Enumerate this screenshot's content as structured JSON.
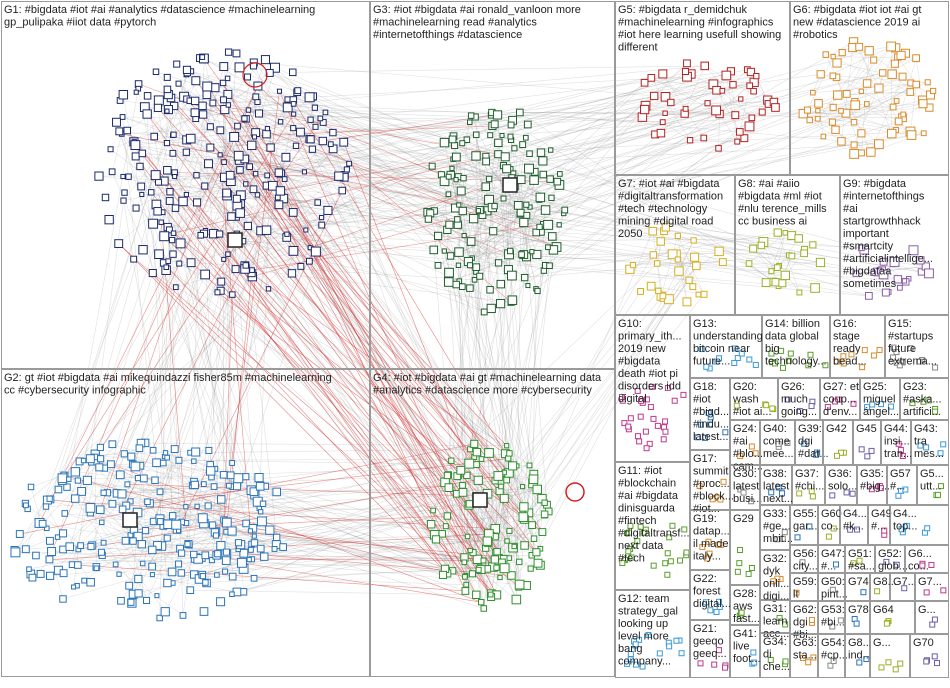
{
  "groups": [
    {
      "label_lines": [
        "G1: #bigdata #iot #ai #analytics #datascience #machinelearning",
        "gp_pulipaka #iiot data #pytorch"
      ]
    },
    {
      "label_lines": [
        "G2: gt #iot #bigdata #ai mikequindazzi fisher85m #machinelearning",
        "cc #cybersecurity infographic"
      ]
    },
    {
      "label_lines": [
        "G3: #iot #bigdata #ai ronald_vanloon more",
        "#machinelearning read #analytics",
        "#internetofthings #datascience"
      ]
    },
    {
      "label_lines": [
        "G4: #iot #bigdata #ai gt #machinelearning data",
        "#analytics #datascience more #cybersecurity"
      ]
    },
    {
      "label_lines": [
        "G5: #bigdata r_demidchuk",
        "#machinelearning #infographics",
        "#iot here learning usefull showing",
        "different"
      ]
    },
    {
      "label_lines": [
        "G6: #bigdata #iot iot #ai gt",
        "new #datascience 2019 ai",
        "#robotics"
      ]
    },
    {
      "label_lines": [
        "G7: #iot #ai #bigdata",
        "#digitaltransformation",
        "#tech #technology",
        "mining #digital road",
        "2050"
      ]
    },
    {
      "label_lines": [
        "G8: #ai #aiio",
        "#bigdata #ml #iot",
        "#nlu terence_mills",
        "cc business ai"
      ]
    },
    {
      "label_lines": [
        "G9: #bigdata",
        "#internetofthings",
        "#ai",
        "startgrowthhack",
        "important",
        "#smartcity",
        "#artificialintellige...",
        "#bigdataa",
        "sometimes"
      ]
    },
    {
      "label_lines": [
        "G10:",
        "primary_ith...",
        "2019 new",
        "#bigdata",
        "death #iot pi",
        "disorders idd",
        "digital"
      ]
    },
    {
      "label_lines": [
        "G13:",
        "understanding",
        "bitcoin near",
        "future..."
      ]
    },
    {
      "label_lines": [
        "G14: billion",
        "data global",
        "big",
        "technology..."
      ]
    },
    {
      "label_lines": [
        "G16:",
        "stage",
        "ready",
        "bead..."
      ]
    },
    {
      "label_lines": [
        "G15:",
        "#startups",
        "future",
        "extrema..."
      ]
    },
    {
      "label_lines": [
        "G18:",
        "#iot",
        "#bigd...",
        "#indu...",
        "latest..."
      ]
    },
    {
      "label_lines": [
        "G20:",
        "wash",
        "#iot ai..."
      ]
    },
    {
      "label_lines": [
        "G26:",
        "much",
        "going..."
      ]
    },
    {
      "label_lines": [
        "G27: et",
        "coup...",
        "d'env..."
      ]
    },
    {
      "label_lines": [
        "G25:",
        "miguel",
        "ángel..."
      ]
    },
    {
      "label_lines": [
        "G23:",
        "#aska...",
        "artifici..."
      ]
    },
    {
      "label_lines": [
        "G24:",
        "#ai",
        "#blo...",
        "cam..."
      ]
    },
    {
      "label_lines": [
        "G40:",
        "come",
        "mee..."
      ]
    },
    {
      "label_lines": [
        "G39:",
        "dgi",
        "#dat..."
      ]
    },
    {
      "label_lines": [
        "G42"
      ]
    },
    {
      "label_lines": [
        "G45"
      ]
    },
    {
      "label_lines": [
        "G44:",
        "insi...",
        "tran..."
      ]
    },
    {
      "label_lines": [
        "G43:",
        "tra",
        "mes..."
      ]
    },
    {
      "label_lines": [
        "G11: #iot",
        "#blockchain",
        "#ai #bigdata",
        "dinisguarda",
        "#fintech",
        "#digitaltransf...",
        "next data",
        "#tech"
      ]
    },
    {
      "label_lines": [
        "G17:",
        "summit",
        "#proc...",
        "#block...",
        "#iot..."
      ]
    },
    {
      "label_lines": [
        "G30:",
        "latest",
        "busi..."
      ]
    },
    {
      "label_lines": [
        "G38:",
        "latest",
        "next..."
      ]
    },
    {
      "label_lines": [
        "G37:",
        "#chi..."
      ]
    },
    {
      "label_lines": [
        "G36:",
        "solo..."
      ]
    },
    {
      "label_lines": [
        "G35:",
        "#big..."
      ]
    },
    {
      "label_lines": [
        "G57",
        "#..."
      ]
    },
    {
      "label_lines": [
        "G5...",
        "utt..."
      ]
    },
    {
      "label_lines": [
        "G19:",
        "datap...",
        "il made",
        "italy..."
      ]
    },
    {
      "label_lines": [
        "G33:",
        "#ge...",
        "mbit..."
      ]
    },
    {
      "label_lines": [
        "G55:",
        "gar..."
      ]
    },
    {
      "label_lines": [
        "G60",
        "co..."
      ]
    },
    {
      "label_lines": [
        "G4...",
        "#k..."
      ]
    },
    {
      "label_lines": [
        "G49",
        "#..."
      ]
    },
    {
      "label_lines": [
        "G4...",
        "top..."
      ]
    },
    {
      "label_lines": [
        "G29"
      ]
    },
    {
      "label_lines": [
        "G32:",
        "dyk",
        "onli...",
        "digi..."
      ]
    },
    {
      "label_lines": [
        "G56:",
        "city..."
      ]
    },
    {
      "label_lines": [
        "G47:",
        "#..."
      ]
    },
    {
      "label_lines": [
        "G51:",
        "#sa..."
      ]
    },
    {
      "label_lines": [
        "G52:",
        "glob..."
      ]
    },
    {
      "label_lines": [
        "G6...",
        "co..."
      ]
    },
    {
      "label_lines": [
        "G22:",
        "forest",
        "digital..."
      ]
    },
    {
      "label_lines": [
        "G28:",
        "aws",
        "fast..."
      ]
    },
    {
      "label_lines": [
        "G59:",
        "lt"
      ]
    },
    {
      "label_lines": [
        "G50:",
        "pint..."
      ]
    },
    {
      "label_lines": [
        "G74"
      ]
    },
    {
      "label_lines": [
        "G8..."
      ]
    },
    {
      "label_lines": [
        "G7..."
      ]
    },
    {
      "label_lines": [
        "G7..."
      ]
    },
    {
      "label_lines": [
        "G12: team",
        "strategy_gal",
        "looking up",
        "level more",
        "bang",
        "company..."
      ]
    },
    {
      "label_lines": [
        "G31:",
        "learn",
        "acc..."
      ]
    },
    {
      "label_lines": [
        "G62:",
        "dgi",
        "#bi..."
      ]
    },
    {
      "label_lines": [
        "G53:",
        "#bi..."
      ]
    },
    {
      "label_lines": [
        "G78"
      ]
    },
    {
      "label_lines": [
        "G64"
      ]
    },
    {
      "label_lines": [
        "G..."
      ]
    },
    {
      "label_lines": [
        "G21:",
        "geeqo",
        "geeq..."
      ]
    },
    {
      "label_lines": [
        "G41:",
        "live",
        "foot..."
      ]
    },
    {
      "label_lines": [
        "G34:",
        "di",
        "che..."
      ]
    },
    {
      "label_lines": [
        "G63:",
        "sta..."
      ]
    },
    {
      "label_lines": [
        "G54:",
        "#cp..."
      ]
    },
    {
      "label_lines": [
        "G8...",
        "ind..."
      ]
    },
    {
      "label_lines": [
        "G..."
      ]
    },
    {
      "label_lines": [
        "G70"
      ]
    }
  ]
}
